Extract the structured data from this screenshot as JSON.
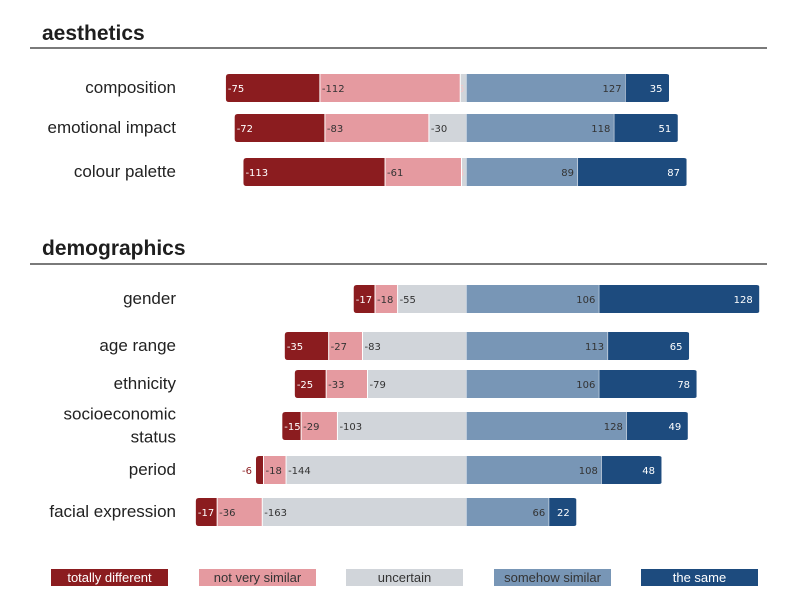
{
  "chart_data": {
    "type": "bar",
    "subtype": "diverging-stacked",
    "legend_position": "bottom",
    "legend": [
      {
        "name": "totally different",
        "color": "#8b1c1f",
        "text_color": "#ffffff"
      },
      {
        "name": "not very similar",
        "color": "#e59aa0",
        "text_color": "#333333"
      },
      {
        "name": "uncertain",
        "color": "#d1d5da",
        "text_color": "#333333"
      },
      {
        "name": "somehow similar",
        "color": "#7896b6",
        "text_color": "#333333"
      },
      {
        "name": "the same",
        "color": "#1d4b7e",
        "text_color": "#ffffff"
      }
    ],
    "panels": [
      {
        "title": "aesthetics",
        "rows": [
          {
            "label": [
              "composition"
            ],
            "values": [
              -75,
              -112,
              -5,
              127,
              35
            ]
          },
          {
            "label": [
              "emotional impact"
            ],
            "values": [
              -72,
              -83,
              -30,
              118,
              51
            ]
          },
          {
            "label": [
              "colour  palette"
            ],
            "values": [
              -113,
              -61,
              -4,
              89,
              87
            ]
          }
        ]
      },
      {
        "title": "demographics",
        "rows": [
          {
            "label": [
              "gender"
            ],
            "values": [
              -17,
              -18,
              -55,
              106,
              128
            ]
          },
          {
            "label": [
              "age range"
            ],
            "values": [
              -35,
              -27,
              -83,
              113,
              65
            ]
          },
          {
            "label": [
              "ethnicity"
            ],
            "values": [
              -25,
              -33,
              -79,
              106,
              78
            ]
          },
          {
            "label": [
              "socioeconomic",
              "status"
            ],
            "values": [
              -15,
              -29,
              -103,
              128,
              49
            ]
          },
          {
            "label": [
              "period"
            ],
            "values": [
              -6,
              -18,
              -144,
              108,
              48
            ]
          },
          {
            "label": [
              "facial expression"
            ],
            "values": [
              -17,
              -36,
              -163,
              66,
              22
            ]
          }
        ]
      }
    ]
  }
}
